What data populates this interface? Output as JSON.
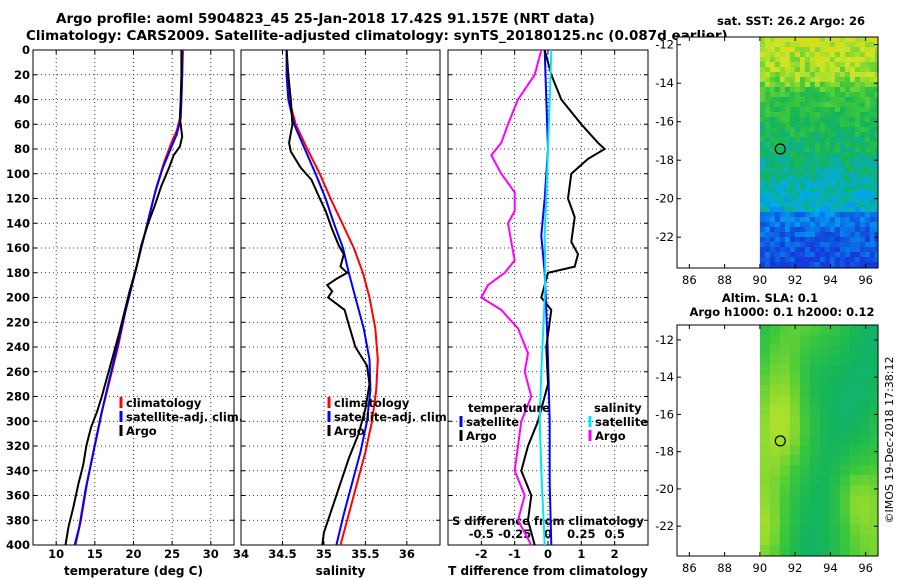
{
  "header": {
    "line1": "Argo profile: aoml 5904823_45 25-Jan-2018 17.42S 91.157E (NRT data)",
    "line2": "Climatology: CARS2009. Satellite-adjusted climatology: synTS_20180125.nc (0.087d earlier)"
  },
  "watermark": "©IMOS 19-Dec-2018 17:38:12",
  "colors": {
    "climatology": "#ff0000",
    "satellite": "#0000ff",
    "argo": "#000000",
    "salinity_diff_sat": "#00e5ff",
    "salinity_diff_argo": "#ff00ff"
  },
  "chart_data": [
    {
      "type": "line",
      "id": "temperature",
      "xlabel": "temperature (deg C)",
      "ylabel": "",
      "xlim": [
        7,
        33
      ],
      "ylim": [
        400,
        0
      ],
      "xticks": [
        10,
        15,
        20,
        25,
        30
      ],
      "yticks": [
        0,
        20,
        40,
        60,
        80,
        100,
        120,
        140,
        160,
        180,
        200,
        220,
        240,
        260,
        280,
        300,
        320,
        340,
        360,
        380,
        400
      ],
      "grid": true,
      "legend": [
        "climatology",
        "satellite-adj. clim.",
        "Argo"
      ],
      "legend_placement": "lower-right",
      "series": [
        {
          "name": "climatology",
          "color": "#ff0000",
          "points": [
            [
              26.4,
              0
            ],
            [
              26.3,
              20
            ],
            [
              26.2,
              40
            ],
            [
              26.0,
              55
            ],
            [
              25.6,
              65
            ],
            [
              24.9,
              75
            ],
            [
              24.0,
              90
            ],
            [
              23.0,
              110
            ],
            [
              22.0,
              135
            ],
            [
              21.0,
              160
            ],
            [
              20.0,
              185
            ],
            [
              19.0,
              210
            ],
            [
              18.0,
              240
            ],
            [
              17.0,
              265
            ],
            [
              16.0,
              290
            ],
            [
              15.0,
              320
            ],
            [
              14.0,
              350
            ],
            [
              13.2,
              380
            ],
            [
              12.5,
              400
            ]
          ]
        },
        {
          "name": "satellite-adj. clim.",
          "color": "#0000ff",
          "points": [
            [
              26.3,
              0
            ],
            [
              26.3,
              20
            ],
            [
              26.2,
              40
            ],
            [
              26.1,
              55
            ],
            [
              25.6,
              68
            ],
            [
              24.8,
              80
            ],
            [
              23.8,
              95
            ],
            [
              22.8,
              115
            ],
            [
              21.8,
              140
            ],
            [
              20.8,
              165
            ],
            [
              19.8,
              190
            ],
            [
              18.8,
              215
            ],
            [
              17.8,
              242
            ],
            [
              16.8,
              268
            ],
            [
              15.8,
              295
            ],
            [
              14.8,
              325
            ],
            [
              13.8,
              355
            ],
            [
              13.0,
              385
            ],
            [
              12.4,
              400
            ]
          ]
        },
        {
          "name": "Argo",
          "color": "#000000",
          "points": [
            [
              26.2,
              0
            ],
            [
              26.2,
              20
            ],
            [
              26.1,
              40
            ],
            [
              26.0,
              55
            ],
            [
              26.3,
              70
            ],
            [
              26.0,
              78
            ],
            [
              25.2,
              85
            ],
            [
              24.6,
              95
            ],
            [
              23.6,
              110
            ],
            [
              22.8,
              125
            ],
            [
              21.9,
              140
            ],
            [
              21.0,
              158
            ],
            [
              20.4,
              175
            ],
            [
              19.5,
              195
            ],
            [
              18.9,
              210
            ],
            [
              18.1,
              230
            ],
            [
              17.0,
              255
            ],
            [
              15.9,
              280
            ],
            [
              15.3,
              292
            ],
            [
              14.5,
              305
            ],
            [
              13.9,
              320
            ],
            [
              13.5,
              335
            ],
            [
              12.9,
              350
            ],
            [
              12.2,
              370
            ],
            [
              11.6,
              385
            ],
            [
              11.2,
              400
            ]
          ]
        }
      ]
    },
    {
      "type": "line",
      "id": "salinity",
      "xlabel": "salinity",
      "xlim": [
        34,
        36.4
      ],
      "ylim": [
        400,
        0
      ],
      "xticks": [
        34,
        34.5,
        35,
        35.5,
        36
      ],
      "grid": true,
      "legend": [
        "climatology",
        "satellite-adj. clim.",
        "Argo"
      ],
      "legend_placement": "lower-right",
      "series": [
        {
          "name": "climatology",
          "color": "#ff0000",
          "points": [
            [
              34.55,
              0
            ],
            [
              34.56,
              20
            ],
            [
              34.58,
              40
            ],
            [
              34.66,
              60
            ],
            [
              34.8,
              80
            ],
            [
              34.95,
              100
            ],
            [
              35.08,
              120
            ],
            [
              35.22,
              140
            ],
            [
              35.36,
              160
            ],
            [
              35.47,
              180
            ],
            [
              35.55,
              200
            ],
            [
              35.62,
              225
            ],
            [
              35.65,
              250
            ],
            [
              35.63,
              275
            ],
            [
              35.58,
              300
            ],
            [
              35.5,
              325
            ],
            [
              35.4,
              350
            ],
            [
              35.3,
              375
            ],
            [
              35.2,
              400
            ]
          ]
        },
        {
          "name": "satellite-adj. clim.",
          "color": "#0000ff",
          "points": [
            [
              34.55,
              0
            ],
            [
              34.55,
              20
            ],
            [
              34.57,
              40
            ],
            [
              34.64,
              60
            ],
            [
              34.77,
              80
            ],
            [
              34.9,
              100
            ],
            [
              35.02,
              120
            ],
            [
              35.12,
              140
            ],
            [
              35.23,
              160
            ],
            [
              35.3,
              180
            ],
            [
              35.38,
              200
            ],
            [
              35.48,
              225
            ],
            [
              35.55,
              250
            ],
            [
              35.56,
              275
            ],
            [
              35.52,
              300
            ],
            [
              35.44,
              325
            ],
            [
              35.34,
              350
            ],
            [
              35.24,
              375
            ],
            [
              35.15,
              400
            ]
          ]
        },
        {
          "name": "Argo",
          "color": "#000000",
          "points": [
            [
              34.55,
              0
            ],
            [
              34.57,
              20
            ],
            [
              34.6,
              40
            ],
            [
              34.62,
              60
            ],
            [
              34.58,
              75
            ],
            [
              34.6,
              82
            ],
            [
              34.72,
              95
            ],
            [
              34.85,
              105
            ],
            [
              34.95,
              120
            ],
            [
              35.02,
              130
            ],
            [
              35.1,
              145
            ],
            [
              35.18,
              158
            ],
            [
              35.24,
              165
            ],
            [
              35.2,
              175
            ],
            [
              35.28,
              180
            ],
            [
              35.15,
              185
            ],
            [
              35.04,
              190
            ],
            [
              35.1,
              195
            ],
            [
              35.05,
              200
            ],
            [
              35.15,
              205
            ],
            [
              35.25,
              210
            ],
            [
              35.3,
              222
            ],
            [
              35.38,
              240
            ],
            [
              35.52,
              255
            ],
            [
              35.55,
              270
            ],
            [
              35.5,
              290
            ],
            [
              35.42,
              310
            ],
            [
              35.3,
              330
            ],
            [
              35.2,
              350
            ],
            [
              35.1,
              370
            ],
            [
              35.0,
              390
            ],
            [
              34.98,
              400
            ]
          ]
        }
      ]
    },
    {
      "type": "line",
      "id": "difference",
      "xlabel": "T difference from climatology",
      "xlabel_top": "S difference from climatology",
      "xlim": [
        -3,
        3
      ],
      "ylim": [
        400,
        0
      ],
      "xticks": [
        -2,
        -1,
        0,
        1,
        2
      ],
      "xticks_s_labels": [
        "-0.5",
        "-0.25",
        "0",
        "0.25",
        "0.5"
      ],
      "grid": true,
      "legend_temperature_title": "temperature",
      "legend_salinity_title": "salinity",
      "legend_temperature": [
        "satellite",
        "Argo"
      ],
      "legend_salinity": [
        "satellite",
        "Argo"
      ],
      "legend_placement": "lower",
      "series": [
        {
          "name": "T satellite",
          "color": "#0000ff",
          "points": [
            [
              -0.1,
              0
            ],
            [
              -0.05,
              40
            ],
            [
              0,
              80
            ],
            [
              -0.1,
              120
            ],
            [
              -0.2,
              150
            ],
            [
              -0.1,
              180
            ],
            [
              -0.05,
              210
            ],
            [
              0,
              250
            ],
            [
              0.05,
              300
            ],
            [
              0.05,
              350
            ],
            [
              0.1,
              400
            ]
          ]
        },
        {
          "name": "T Argo",
          "color": "#000000",
          "points": [
            [
              -0.1,
              0
            ],
            [
              0.1,
              20
            ],
            [
              0.4,
              40
            ],
            [
              1.0,
              60
            ],
            [
              1.5,
              75
            ],
            [
              1.7,
              80
            ],
            [
              1.2,
              88
            ],
            [
              0.7,
              100
            ],
            [
              0.6,
              120
            ],
            [
              0.8,
              135
            ],
            [
              0.7,
              155
            ],
            [
              0.9,
              165
            ],
            [
              0.8,
              175
            ],
            [
              0,
              180
            ],
            [
              -0.2,
              200
            ],
            [
              0.1,
              210
            ],
            [
              -0.05,
              240
            ],
            [
              0,
              270
            ],
            [
              -0.3,
              300
            ],
            [
              -0.6,
              320
            ],
            [
              -0.8,
              340
            ],
            [
              -0.5,
              360
            ],
            [
              -0.6,
              380
            ],
            [
              -0.4,
              400
            ]
          ]
        },
        {
          "name": "S satellite",
          "color": "#00e5ff",
          "points": [
            [
              0.1,
              0
            ],
            [
              0.05,
              40
            ],
            [
              0,
              80
            ],
            [
              -0.05,
              120
            ],
            [
              -0.1,
              150
            ],
            [
              -0.08,
              180
            ],
            [
              -0.1,
              200
            ],
            [
              -0.15,
              230
            ],
            [
              -0.2,
              260
            ],
            [
              -0.25,
              300
            ],
            [
              -0.2,
              340
            ],
            [
              -0.15,
              370
            ],
            [
              -0.1,
              400
            ]
          ]
        },
        {
          "name": "S Argo",
          "color": "#ff00ff",
          "points": [
            [
              -0.2,
              0
            ],
            [
              -0.4,
              20
            ],
            [
              -0.9,
              40
            ],
            [
              -1.2,
              60
            ],
            [
              -1.4,
              75
            ],
            [
              -1.7,
              85
            ],
            [
              -1.4,
              100
            ],
            [
              -1.0,
              115
            ],
            [
              -1.0,
              130
            ],
            [
              -1.2,
              140
            ],
            [
              -1.1,
              155
            ],
            [
              -1.0,
              170
            ],
            [
              -1.3,
              180
            ],
            [
              -1.8,
              190
            ],
            [
              -2.0,
              200
            ],
            [
              -1.4,
              210
            ],
            [
              -0.9,
              225
            ],
            [
              -0.6,
              245
            ],
            [
              -0.7,
              260
            ],
            [
              -0.5,
              280
            ],
            [
              -0.8,
              300
            ],
            [
              -0.9,
              320
            ],
            [
              -1.0,
              340
            ],
            [
              -0.7,
              360
            ],
            [
              -0.9,
              380
            ],
            [
              -0.5,
              400
            ]
          ]
        }
      ]
    },
    {
      "type": "heatmap",
      "id": "sst_map",
      "title": "sat. SST: 26.2 Argo: 26",
      "xlim": [
        85.3,
        96.7
      ],
      "ylim": [
        -23.6,
        -11.6
      ],
      "xticks": [
        86,
        88,
        90,
        92,
        94,
        96
      ],
      "yticks": [
        -12,
        -14,
        -16,
        -18,
        -20,
        -22
      ],
      "data_extent_x": [
        90,
        96.7
      ],
      "argo_position": [
        91.157,
        -17.42
      ]
    },
    {
      "type": "heatmap",
      "id": "sla_map",
      "title": "Altim. SLA: 0.1",
      "subtitle": "Argo h1000: 0.1 h2000: 0.12",
      "xlim": [
        85.3,
        96.7
      ],
      "ylim": [
        -23.6,
        -11.2
      ],
      "xticks": [
        86,
        88,
        90,
        92,
        94,
        96
      ],
      "yticks": [
        -12,
        -14,
        -16,
        -18,
        -20,
        -22
      ],
      "data_extent_x": [
        90,
        96.7
      ],
      "argo_position": [
        91.157,
        -17.42
      ]
    }
  ]
}
